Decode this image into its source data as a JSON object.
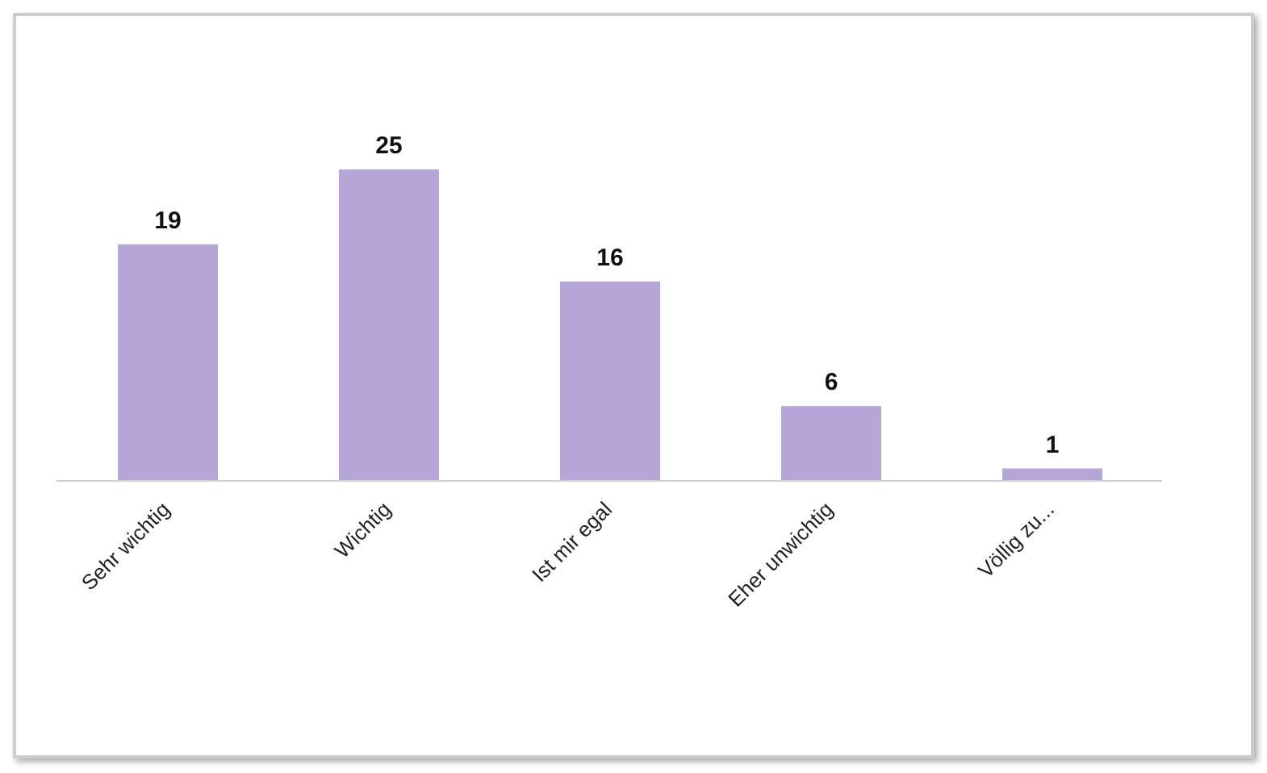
{
  "chart_data": {
    "type": "bar",
    "categories": [
      "Sehr wichtig",
      "Wichtig",
      "Ist mir egal",
      "Eher unwichtig",
      "Völlig zu..."
    ],
    "values": [
      19,
      25,
      16,
      6,
      1
    ],
    "color": "#b6a6d8",
    "data_labels": true,
    "grid": false,
    "legend": false
  }
}
